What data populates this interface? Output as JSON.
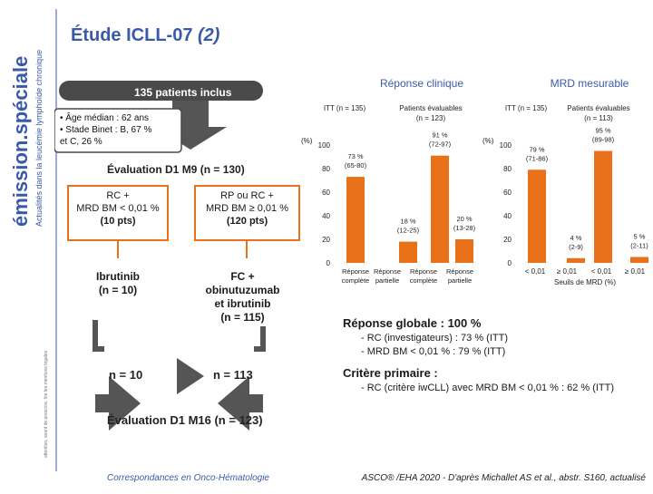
{
  "sidebar": {
    "brand": "émission.spéciale",
    "tagline": "Actualités dans la leucémie lymphoïde chronique",
    "disclaimer": "attention, avant de prescrire, lire les mentions légales"
  },
  "title": {
    "main": "Étude ICLL-07 ",
    "italic": "(2)"
  },
  "flow": {
    "patients": "135 patients inclus",
    "demographics": [
      "• Âge médian : 62 ans",
      "• Stade Binet : B, 67 %",
      "et C, 26 %"
    ],
    "eval_m9": "Évaluation D1 M9 (n = 130)",
    "box_left": [
      "RC +",
      "MRD BM < 0,01 %",
      "(10 pts)"
    ],
    "box_right": [
      "RP ou RC +",
      "MRD BM ≥ 0,01 %",
      "(120 pts)"
    ],
    "arm_left": [
      "Ibrutinib",
      "(n = 10)"
    ],
    "arm_right": [
      "FC +",
      "obinutuzumab",
      "et ibrutinib",
      "(n = 115)"
    ],
    "n_left": "n = 10",
    "n_right": "n = 113",
    "eval_m16": "Évaluation D1 M16 (n = 123)"
  },
  "chart_data": [
    {
      "type": "bar",
      "title": "Réponse clinique",
      "ylabel": "(%)",
      "ylim": [
        0,
        100
      ],
      "yticks": [
        "0",
        "20",
        "40",
        "60",
        "80",
        "100"
      ],
      "group_labels": [
        "ITT (n = 135)",
        "Patients évaluables (n = 123)"
      ],
      "categories": [
        "Réponse complète",
        "Réponse partielle",
        "Réponse complète",
        "Réponse partielle"
      ],
      "values": [
        73,
        18,
        91,
        20
      ],
      "labels": [
        "73 %\n(65-80)",
        "18 %\n(12-25)",
        "91 %\n(72-97)",
        "20 %\n(13-28)"
      ],
      "colors": [
        "#e8711a",
        "#e8711a",
        "#e8711a",
        "#e8711a"
      ]
    },
    {
      "type": "bar",
      "title": "MRD mesurable",
      "ylabel": "(%)",
      "ylim": [
        0,
        100
      ],
      "yticks": [
        "0",
        "20",
        "40",
        "60",
        "80",
        "100"
      ],
      "group_labels": [
        "ITT (n = 135)",
        "Patients évaluables (n = 113)"
      ],
      "categories": [
        "< 0,01",
        "≥ 0,01",
        "< 0,01",
        "≥ 0,01"
      ],
      "xlabel": "Seuils de MRD (%)",
      "values": [
        79,
        4,
        95,
        5
      ],
      "labels": [
        "79 %\n(71-86)",
        "4 %\n(2-9)",
        "95 %\n(89-98)",
        "5 %\n(2-11)"
      ],
      "colors": [
        "#e8711a",
        "#e8711a",
        "#e8711a",
        "#e8711a"
      ]
    }
  ],
  "results": {
    "b1_title": "Réponse globale : 100 %",
    "b1_l1": "- RC (investigateurs) : 73 % (ITT)",
    "b1_l2": "- MRD BM < 0,01 % : 79 % (ITT)",
    "b2_title": "Critère primaire :",
    "b2_l1": "- RC (critère iwCLL) avec MRD BM < 0,01 % : 62 % (ITT)"
  },
  "footer": {
    "left": "Correspondances en Onco-Hématologie",
    "right": "ASCO® /EHA 2020 - D'après Michallet AS et al., abstr. S160, actualisé"
  }
}
